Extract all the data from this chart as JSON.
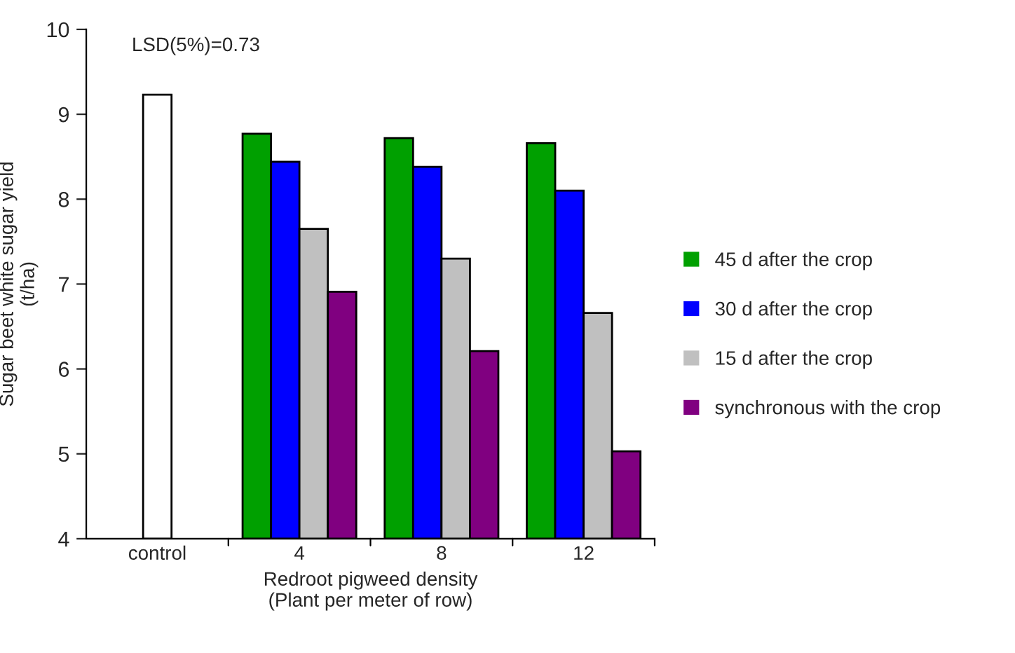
{
  "chart_data": {
    "type": "bar",
    "xlabel": "Redroot pigweed density\n(Plant per meter of row)",
    "ylabel": "Sugar beet white sugar yield\n(t/ha)",
    "categories": [
      "control",
      "4",
      "8",
      "12"
    ],
    "series": [
      {
        "color": "#ffffff",
        "values": [
          9.23,
          null,
          null,
          null
        ]
      },
      {
        "name": "45 d after the crop",
        "color": "#00a000",
        "values": [
          null,
          8.77,
          8.72,
          8.66
        ]
      },
      {
        "name": "30 d after the crop",
        "color": "#0000ff",
        "values": [
          null,
          8.44,
          8.38,
          8.1
        ]
      },
      {
        "name": "15 d after the crop",
        "color": "#c0c0c0",
        "values": [
          null,
          7.65,
          7.3,
          6.66
        ]
      },
      {
        "name": "synchronous with the crop",
        "color": "#800080",
        "values": [
          null,
          6.91,
          6.21,
          5.03
        ]
      }
    ],
    "ylim": [
      4,
      10
    ],
    "yticks": [
      4,
      5,
      6,
      7,
      8,
      9,
      10
    ],
    "annotations": [
      "LSD(5%)=0.73"
    ],
    "legend": "right",
    "grid": false
  }
}
